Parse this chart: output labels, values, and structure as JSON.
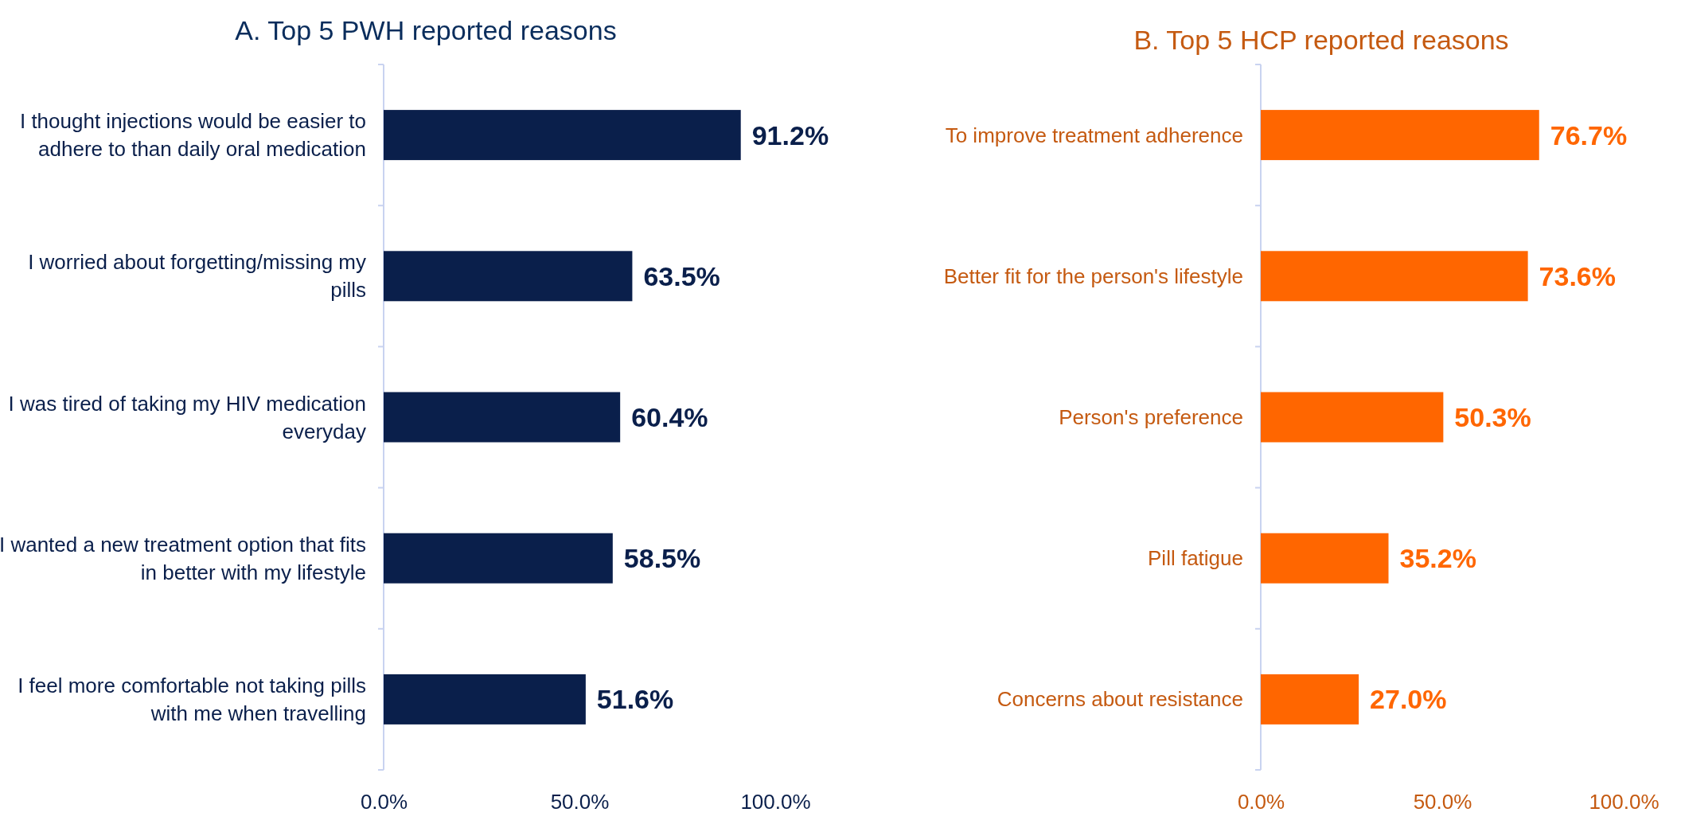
{
  "chart_data": [
    {
      "type": "bar",
      "orientation": "horizontal",
      "title": "A. Top 5 PWH reported reasons",
      "categories": [
        "I thought injections would be easier to adhere to than daily oral medication",
        "I worried about forgetting/missing my pills",
        "I was tired of taking my HIV medication everyday",
        "I wanted a new treatment option that fits in better with my lifestyle",
        "I  feel more comfortable not taking pills with me when travelling"
      ],
      "values": [
        91.2,
        63.5,
        60.4,
        58.5,
        51.6
      ],
      "value_labels": [
        "91.2%",
        "63.5%",
        "60.4%",
        "58.5%",
        "51.6%"
      ],
      "color": "#0a1f4b",
      "xlim": [
        0,
        100
      ],
      "xticks": [
        {
          "value": 0,
          "label": "0.0%"
        },
        {
          "value": 50,
          "label": "50.0%"
        },
        {
          "value": 100,
          "label": "100.0%"
        }
      ]
    },
    {
      "type": "bar",
      "orientation": "horizontal",
      "title": "B. Top 5 HCP reported reasons",
      "categories": [
        "To improve treatment adherence",
        "Better fit for the person's lifestyle",
        "Person's preference",
        "Pill fatigue",
        "Concerns about resistance"
      ],
      "values": [
        76.7,
        73.6,
        50.3,
        35.2,
        27.0
      ],
      "value_labels": [
        "76.7%",
        "73.6%",
        "50.3%",
        "35.2%",
        "27.0%"
      ],
      "color": "#ff6600",
      "xlim": [
        0,
        100
      ],
      "xticks": [
        {
          "value": 0,
          "label": "0.0%"
        },
        {
          "value": 50,
          "label": "50.0%"
        },
        {
          "value": 100,
          "label": "100.0%"
        }
      ]
    }
  ]
}
